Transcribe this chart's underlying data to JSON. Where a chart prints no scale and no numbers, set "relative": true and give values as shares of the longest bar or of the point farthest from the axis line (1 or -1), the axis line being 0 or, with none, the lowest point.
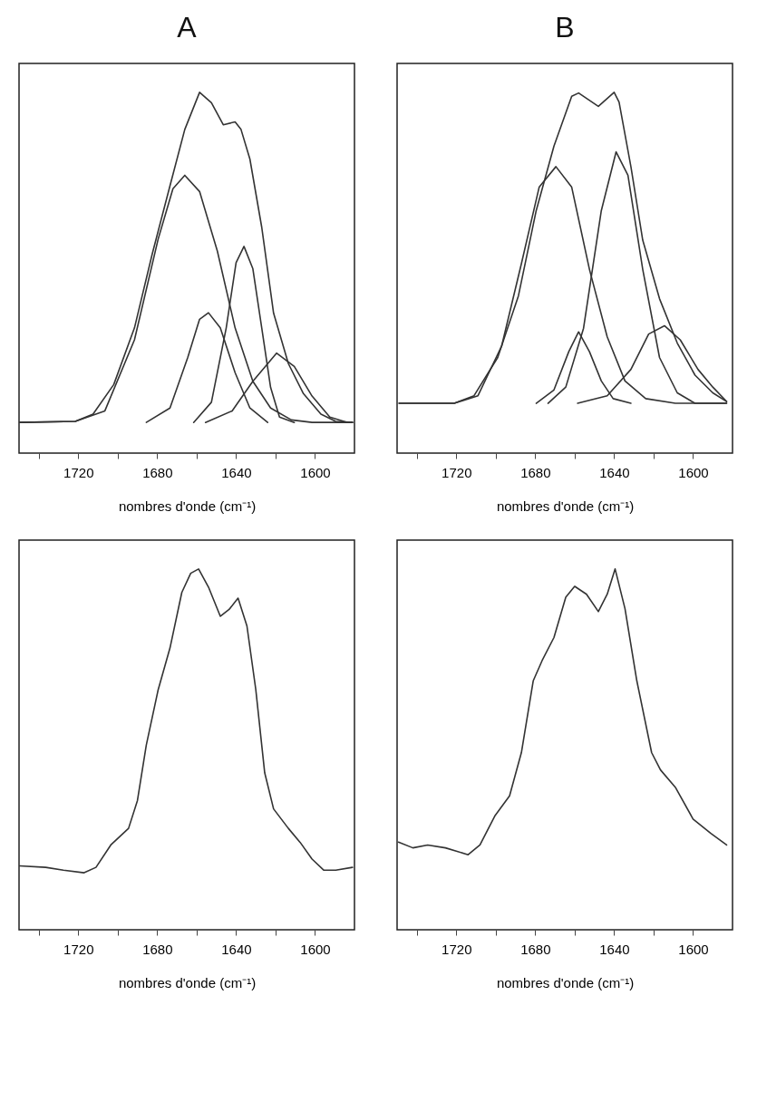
{
  "chart_data": [
    {
      "type": "line",
      "title": "A",
      "xlabel": "nombres d'onde (cm⁻¹)",
      "relative": true,
      "xlim": [
        1750,
        1580
      ],
      "xticks": [
        {
          "value": 1740,
          "label": null
        },
        1720,
        {
          "value": 1700,
          "label": null
        },
        1680,
        {
          "value": 1660,
          "label": null
        },
        1640,
        {
          "value": 1620,
          "label": null
        },
        1600
      ],
      "series": [
        {
          "color": "#333333",
          "x": [
            1749.7,
            1721.5,
            1712.5,
            1702,
            1691.5,
            1682.5,
            1673.5,
            1666,
            1658.5,
            1652.5,
            1646.5,
            1640.5,
            1637.5,
            1633,
            1627,
            1621,
            1613.5,
            1606,
            1597,
            1589.5,
            1581
          ],
          "values": [
            0.085,
            0.088,
            0.108,
            0.19,
            0.347,
            0.552,
            0.741,
            0.897,
            1.0,
            0.971,
            0.91,
            0.918,
            0.897,
            0.815,
            0.626,
            0.388,
            0.248,
            0.166,
            0.108,
            0.088,
            0.085
          ]
        },
        {
          "color": "#333333",
          "x": [
            1749.7,
            1721.5,
            1706.5,
            1691.5,
            1679.5,
            1672,
            1666,
            1658.5,
            1649.5,
            1640.5,
            1631.5,
            1622.5,
            1612,
            1601.5,
            1581
          ],
          "values": [
            0.085,
            0.088,
            0.117,
            0.314,
            0.593,
            0.733,
            0.77,
            0.725,
            0.56,
            0.347,
            0.199,
            0.125,
            0.092,
            0.085,
            0.085
          ]
        },
        {
          "color": "#333333",
          "x": [
            1685.5,
            1673.5,
            1664.5,
            1658.5,
            1654,
            1648,
            1640.5,
            1633,
            1624
          ],
          "values": [
            0.085,
            0.125,
            0.265,
            0.371,
            0.389,
            0.347,
            0.223,
            0.125,
            0.085
          ]
        },
        {
          "color": "#333333",
          "x": [
            1661.5,
            1652.5,
            1645,
            1640,
            1636,
            1631.5,
            1627,
            1622.5,
            1618,
            1610.5
          ],
          "values": [
            0.085,
            0.141,
            0.347,
            0.528,
            0.573,
            0.511,
            0.347,
            0.182,
            0.1,
            0.085
          ]
        },
        {
          "color": "#333333",
          "x": [
            1655.5,
            1642,
            1631.5,
            1619.5,
            1610.5,
            1601.5,
            1592.5,
            1583.5,
            1581
          ],
          "values": [
            0.085,
            0.117,
            0.199,
            0.277,
            0.24,
            0.158,
            0.1,
            0.085,
            0.085
          ]
        }
      ]
    },
    {
      "type": "line",
      "title": "B",
      "xlabel": "nombres d'onde (cm⁻¹)",
      "relative": true,
      "xlim": [
        1750,
        1580
      ],
      "xticks": [
        {
          "value": 1740,
          "label": null
        },
        1720,
        {
          "value": 1700,
          "label": null
        },
        1680,
        {
          "value": 1660,
          "label": null
        },
        1640,
        {
          "value": 1620,
          "label": null
        },
        1600
      ],
      "series": [
        {
          "color": "#333333",
          "x": [
            1749,
            1721,
            1711,
            1699,
            1688.5,
            1679.5,
            1670.5,
            1661.5,
            1658,
            1648,
            1640,
            1637.5,
            1631.5,
            1625.5,
            1617,
            1608,
            1599,
            1590,
            1583
          ],
          "values": [
            0.138,
            0.138,
            0.159,
            0.265,
            0.436,
            0.672,
            0.851,
            0.989,
            0.998,
            0.961,
            1.0,
            0.973,
            0.794,
            0.59,
            0.428,
            0.305,
            0.216,
            0.167,
            0.143
          ]
        },
        {
          "color": "#333333",
          "x": [
            1749,
            1721,
            1709,
            1697,
            1687,
            1678,
            1669.5,
            1661.5,
            1652.5,
            1643.5,
            1634.5,
            1624,
            1609,
            1583
          ],
          "values": [
            0.138,
            0.138,
            0.159,
            0.297,
            0.525,
            0.737,
            0.794,
            0.737,
            0.509,
            0.322,
            0.2,
            0.151,
            0.138,
            0.138
          ]
        },
        {
          "color": "#333333",
          "x": [
            1679.5,
            1670.5,
            1663,
            1658,
            1652.5,
            1646.5,
            1640.5,
            1631.5
          ],
          "values": [
            0.138,
            0.175,
            0.281,
            0.336,
            0.281,
            0.2,
            0.151,
            0.138
          ]
        },
        {
          "color": "#333333",
          "x": [
            1673.5,
            1664.5,
            1655.5,
            1646.5,
            1639,
            1633,
            1625.5,
            1617,
            1608,
            1599,
            1583
          ],
          "values": [
            0.138,
            0.183,
            0.346,
            0.672,
            0.835,
            0.77,
            0.509,
            0.265,
            0.167,
            0.138,
            0.138
          ]
        },
        {
          "color": "#333333",
          "x": [
            1658.5,
            1643.5,
            1631.5,
            1622.5,
            1614.5,
            1606.5,
            1597.5,
            1590,
            1583
          ],
          "values": [
            0.138,
            0.159,
            0.232,
            0.33,
            0.353,
            0.314,
            0.232,
            0.183,
            0.143
          ]
        }
      ]
    },
    {
      "type": "line",
      "xlabel": "nombres d'onde (cm⁻¹)",
      "relative": true,
      "xlim": [
        1750,
        1580
      ],
      "xticks": [
        {
          "value": 1740,
          "label": null
        },
        1720,
        {
          "value": 1700,
          "label": null
        },
        1680,
        {
          "value": 1660,
          "label": null
        },
        1640,
        {
          "value": 1620,
          "label": null
        },
        1600
      ],
      "series": [
        {
          "color": "#333333",
          "x": [
            1749.7,
            1736.5,
            1727.5,
            1717,
            1711,
            1703.5,
            1694.5,
            1690,
            1685.5,
            1679.5,
            1673.5,
            1667.5,
            1663,
            1659,
            1654,
            1648,
            1643.5,
            1639,
            1634.5,
            1630,
            1625.5,
            1621,
            1613.5,
            1607.5,
            1601.5,
            1595.5,
            1589.5,
            1581
          ],
          "values": [
            0.177,
            0.173,
            0.165,
            0.158,
            0.173,
            0.235,
            0.281,
            0.358,
            0.512,
            0.665,
            0.781,
            0.935,
            0.988,
            1.0,
            0.95,
            0.869,
            0.888,
            0.919,
            0.842,
            0.665,
            0.435,
            0.335,
            0.281,
            0.242,
            0.196,
            0.165,
            0.165,
            0.173
          ]
        }
      ]
    },
    {
      "type": "line",
      "xlabel": "nombres d'onde (cm⁻¹)",
      "relative": true,
      "xlim": [
        1750,
        1580
      ],
      "xticks": [
        {
          "value": 1740,
          "label": null
        },
        1720,
        {
          "value": 1700,
          "label": null
        },
        1680,
        {
          "value": 1660,
          "label": null
        },
        1640,
        {
          "value": 1620,
          "label": null
        },
        1600
      ],
      "series": [
        {
          "color": "#333333",
          "x": [
            1749.3,
            1742,
            1734.5,
            1725.5,
            1714,
            1708,
            1700.5,
            1693,
            1687,
            1681,
            1676.5,
            1670.5,
            1664.5,
            1660,
            1654,
            1648,
            1643.5,
            1639.5,
            1634.5,
            1628.5,
            1621,
            1616.5,
            1609,
            1600,
            1591,
            1583
          ],
          "values": [
            0.243,
            0.227,
            0.235,
            0.227,
            0.208,
            0.235,
            0.315,
            0.371,
            0.491,
            0.69,
            0.746,
            0.81,
            0.922,
            0.952,
            0.93,
            0.882,
            0.93,
            1.0,
            0.89,
            0.69,
            0.491,
            0.443,
            0.395,
            0.307,
            0.267,
            0.235
          ]
        }
      ]
    }
  ]
}
